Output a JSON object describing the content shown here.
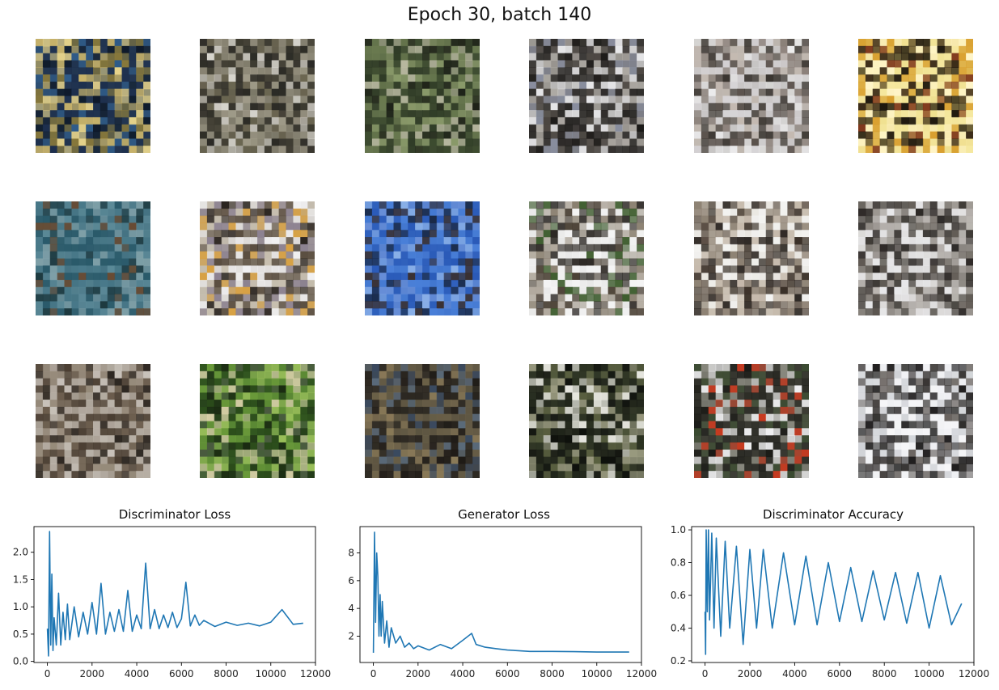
{
  "figure": {
    "title": "Epoch 30, batch 140"
  },
  "samples": [
    {
      "base": "#2b3f57",
      "palette": [
        "#1d2f4d",
        "#c9b46a",
        "#e6d38a",
        "#2f5c8a",
        "#8a7a3a",
        "#0e1a2a"
      ]
    },
    {
      "base": "#5a5648",
      "palette": [
        "#2b2a25",
        "#a39e8c",
        "#d8d6cf",
        "#6c6752",
        "#3c3a30",
        "#8f8b7a"
      ]
    },
    {
      "base": "#4e5a3d",
      "palette": [
        "#2e3a25",
        "#8a9a6a",
        "#b8b8a0",
        "#3c4a2f",
        "#6a7a50",
        "#1e2218"
      ]
    },
    {
      "base": "#6d6a66",
      "palette": [
        "#2a2826",
        "#e8e8ea",
        "#8a8fa0",
        "#4a4540",
        "#b0aca6",
        "#1a1816"
      ]
    },
    {
      "base": "#b0aca8",
      "palette": [
        "#d8d6d8",
        "#3a3530",
        "#8a7f78",
        "#eeeeef",
        "#5a524c",
        "#c4bab2"
      ]
    },
    {
      "base": "#e8d47a",
      "palette": [
        "#1a140c",
        "#f5e8a0",
        "#d9a030",
        "#3a2a18",
        "#fff5c8",
        "#7a3018"
      ]
    },
    {
      "base": "#3e6a7a",
      "palette": [
        "#2a5a6a",
        "#4a7a8a",
        "#5c8a98",
        "#1e3a40",
        "#6a4a30",
        "#7fa0a8"
      ]
    },
    {
      "base": "#b8b0a4",
      "palette": [
        "#f2f2f4",
        "#5a4e40",
        "#2a2420",
        "#d8a040",
        "#8a8090",
        "#c8c0b0"
      ]
    },
    {
      "base": "#3a6cc4",
      "palette": [
        "#2a5ab8",
        "#4a80d8",
        "#1a2a48",
        "#6a90d8",
        "#3a3030",
        "#8ab0e8"
      ]
    },
    {
      "base": "#d8d8d6",
      "palette": [
        "#f4f4f4",
        "#2a2622",
        "#4a4034",
        "#8a8070",
        "#3a5a2a",
        "#b0a89c"
      ]
    },
    {
      "base": "#d8d2c8",
      "palette": [
        "#f4f4f2",
        "#2e2824",
        "#5a4e44",
        "#8a7e70",
        "#c4b8aa",
        "#3a3028"
      ]
    },
    {
      "base": "#c8c4be",
      "palette": [
        "#e8e8ea",
        "#2a2624",
        "#5c5650",
        "#8a8580",
        "#b0aca8",
        "#3e3a36"
      ]
    },
    {
      "base": "#8a7e70",
      "palette": [
        "#b8b0a6",
        "#4a3e32",
        "#6a5c4c",
        "#c8c2ba",
        "#2e2822",
        "#9a8e7e"
      ]
    },
    {
      "base": "#3e6a2a",
      "palette": [
        "#2a4a1a",
        "#6a9a3a",
        "#d8d0a8",
        "#1a2a12",
        "#9ac05a",
        "#4a5a40"
      ]
    },
    {
      "base": "#4a4438",
      "palette": [
        "#2a2620",
        "#6a6048",
        "#3a4a60",
        "#8a7a58",
        "#1e1a16",
        "#5a6a7a"
      ]
    },
    {
      "base": "#3a4030",
      "palette": [
        "#1e2218",
        "#e8e8e0",
        "#5a6040",
        "#2a3020",
        "#9a9a80",
        "#0e100c"
      ]
    },
    {
      "base": "#5a5a50",
      "palette": [
        "#2a2a24",
        "#f0f0f2",
        "#c83a20",
        "#3a4a30",
        "#8a8a80",
        "#1a1a16"
      ]
    },
    {
      "base": "#e4e6ea",
      "palette": [
        "#f6f6f8",
        "#1e1c1c",
        "#3a3634",
        "#2a2826",
        "#6a6460",
        "#d0d2d6"
      ]
    }
  ],
  "chart_data": [
    {
      "type": "line",
      "title": "Discriminator Loss",
      "color": "#1f77b4",
      "xlim": [
        -600,
        12000
      ],
      "ylim": [
        -0.02,
        2.47
      ],
      "xticks": [
        0,
        2000,
        4000,
        6000,
        8000,
        10000,
        12000
      ],
      "yticks": [
        0.0,
        0.5,
        1.0,
        1.5,
        2.0
      ],
      "ytick_labels": [
        "0.0",
        "0.5",
        "1.0",
        "1.5",
        "2.0"
      ],
      "x": [
        0,
        50,
        100,
        150,
        200,
        250,
        300,
        400,
        500,
        600,
        700,
        800,
        900,
        1000,
        1200,
        1400,
        1600,
        1800,
        2000,
        2200,
        2400,
        2600,
        2800,
        3000,
        3200,
        3400,
        3600,
        3800,
        4000,
        4200,
        4400,
        4600,
        4800,
        5000,
        5200,
        5400,
        5600,
        5800,
        6000,
        6200,
        6400,
        6600,
        6800,
        7000,
        7500,
        8000,
        8500,
        9000,
        9500,
        10000,
        10500,
        11000,
        11450
      ],
      "y": [
        0.6,
        0.1,
        2.38,
        0.3,
        1.6,
        0.2,
        0.8,
        0.3,
        1.25,
        0.3,
        0.9,
        0.4,
        1.05,
        0.4,
        1.0,
        0.45,
        0.9,
        0.5,
        1.08,
        0.5,
        1.43,
        0.5,
        0.9,
        0.55,
        0.95,
        0.55,
        1.3,
        0.55,
        0.85,
        0.6,
        1.8,
        0.6,
        0.95,
        0.6,
        0.85,
        0.62,
        0.9,
        0.62,
        0.78,
        1.45,
        0.65,
        0.85,
        0.66,
        0.75,
        0.64,
        0.72,
        0.66,
        0.7,
        0.65,
        0.72,
        0.95,
        0.68,
        0.7
      ]
    },
    {
      "type": "line",
      "title": "Generator Loss",
      "color": "#1f77b4",
      "xlim": [
        -600,
        12000
      ],
      "ylim": [
        0.1,
        9.9
      ],
      "xticks": [
        0,
        2000,
        4000,
        6000,
        8000,
        10000,
        12000
      ],
      "yticks": [
        2,
        4,
        6,
        8
      ],
      "ytick_labels": [
        "2",
        "4",
        "6",
        "8"
      ],
      "x": [
        0,
        50,
        100,
        150,
        200,
        250,
        300,
        350,
        400,
        500,
        600,
        700,
        800,
        1000,
        1200,
        1400,
        1600,
        1800,
        2000,
        2500,
        3000,
        3500,
        4000,
        4400,
        4600,
        5000,
        5500,
        6000,
        6500,
        7000,
        8000,
        9000,
        10000,
        11000,
        11450
      ],
      "y": [
        0.8,
        9.5,
        3.0,
        8.0,
        6.3,
        2.0,
        5.0,
        2.0,
        4.5,
        1.5,
        3.1,
        1.2,
        2.6,
        1.5,
        2.0,
        1.2,
        1.5,
        1.1,
        1.3,
        1.0,
        1.4,
        1.1,
        1.7,
        2.2,
        1.4,
        1.2,
        1.1,
        1.0,
        0.95,
        0.9,
        0.9,
        0.88,
        0.85,
        0.85,
        0.85
      ]
    },
    {
      "type": "line",
      "title": "Discriminator Accuracy",
      "color": "#1f77b4",
      "xlim": [
        -600,
        12000
      ],
      "ylim": [
        0.19,
        1.02
      ],
      "xticks": [
        0,
        2000,
        4000,
        6000,
        8000,
        10000,
        12000
      ],
      "yticks": [
        0.2,
        0.4,
        0.6,
        0.8,
        1.0
      ],
      "ytick_labels": [
        "0.2",
        "0.4",
        "0.6",
        "0.8",
        "1.0"
      ],
      "x": [
        0,
        25,
        50,
        100,
        150,
        200,
        300,
        400,
        500,
        700,
        900,
        1100,
        1400,
        1700,
        2000,
        2300,
        2600,
        3000,
        3500,
        4000,
        4500,
        5000,
        5500,
        6000,
        6500,
        7000,
        7500,
        8000,
        8500,
        9000,
        9500,
        10000,
        10500,
        11000,
        11450
      ],
      "y": [
        0.5,
        0.24,
        1.0,
        0.5,
        1.0,
        0.45,
        0.98,
        0.4,
        0.95,
        0.35,
        0.93,
        0.4,
        0.9,
        0.3,
        0.88,
        0.4,
        0.88,
        0.4,
        0.86,
        0.42,
        0.84,
        0.42,
        0.8,
        0.44,
        0.77,
        0.44,
        0.75,
        0.45,
        0.74,
        0.43,
        0.74,
        0.4,
        0.72,
        0.42,
        0.55
      ]
    }
  ]
}
